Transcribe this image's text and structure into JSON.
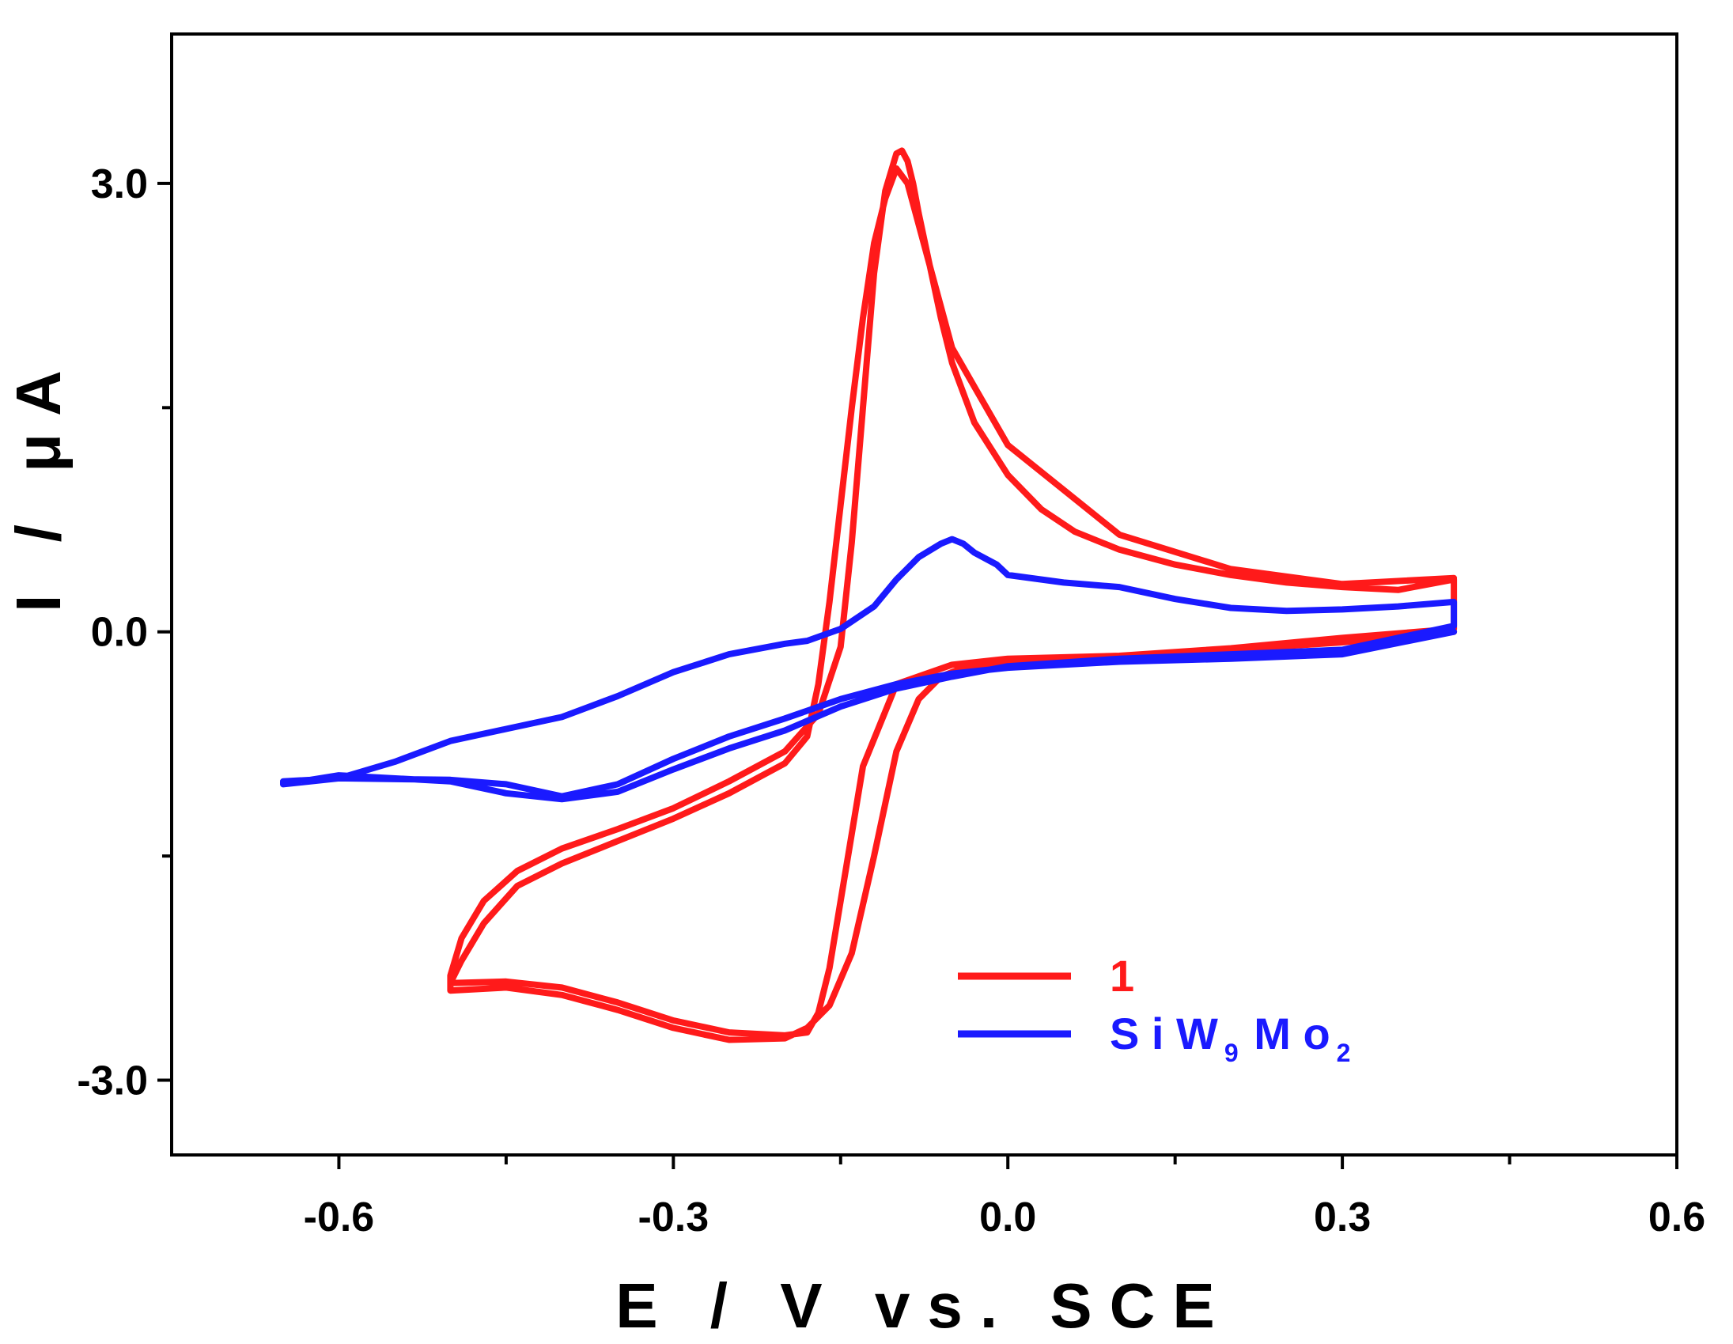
{
  "chart_data": {
    "type": "line",
    "title": "",
    "xlabel": "E / V vs. SCE",
    "ylabel": "I / μA",
    "xlim": [
      -0.75,
      0.6
    ],
    "ylim": [
      -3.5,
      4.0
    ],
    "x_ticks": [
      -0.6,
      -0.3,
      0.0,
      0.3,
      0.6
    ],
    "x_tick_labels": [
      "-0.6",
      "-0.3",
      "0.0",
      "0.3",
      "0.6"
    ],
    "x_minor_ticks": [
      -0.45,
      -0.15,
      0.15,
      0.45
    ],
    "y_ticks": [
      -3.0,
      0.0,
      3.0
    ],
    "y_tick_labels": [
      "-3.0",
      "0.0",
      "3.0"
    ],
    "y_minor_ticks": [
      -1.5,
      1.5
    ],
    "grid": false,
    "legend_position": "bottom-right",
    "series": [
      {
        "name": "1",
        "legend_label": "1",
        "color": "#ff1a1a",
        "x": [
          0.4,
          0.3,
          0.2,
          0.1,
          0.0,
          -0.04,
          -0.06,
          -0.08,
          -0.1,
          -0.12,
          -0.14,
          -0.16,
          -0.18,
          -0.2,
          -0.25,
          -0.3,
          -0.35,
          -0.4,
          -0.45,
          -0.5,
          -0.5,
          -0.49,
          -0.47,
          -0.44,
          -0.4,
          -0.35,
          -0.3,
          -0.25,
          -0.2,
          -0.17,
          -0.15,
          -0.14,
          -0.13,
          -0.12,
          -0.11,
          -0.1,
          -0.095,
          -0.09,
          -0.085,
          -0.08,
          -0.07,
          -0.06,
          -0.05,
          -0.03,
          0.0,
          0.03,
          0.06,
          0.1,
          0.15,
          0.2,
          0.25,
          0.3,
          0.35,
          0.4,
          0.4,
          0.3,
          0.2,
          0.1,
          0.0,
          -0.05,
          -0.1,
          -0.13,
          -0.15,
          -0.16,
          -0.17,
          -0.18,
          -0.2,
          -0.25,
          -0.3,
          -0.35,
          -0.4,
          -0.45,
          -0.5,
          -0.49,
          -0.47,
          -0.44,
          -0.4,
          -0.35,
          -0.3,
          -0.25,
          -0.2,
          -0.18,
          -0.17,
          -0.16,
          -0.15,
          -0.14,
          -0.13,
          -0.12,
          -0.11,
          -0.1,
          -0.09,
          -0.07,
          -0.05,
          0.0,
          0.1,
          0.2,
          0.3,
          0.4
        ],
        "y": [
          0.0,
          -0.07,
          -0.12,
          -0.17,
          -0.2,
          -0.24,
          -0.3,
          -0.45,
          -0.8,
          -1.5,
          -2.15,
          -2.5,
          -2.65,
          -2.72,
          -2.73,
          -2.65,
          -2.53,
          -2.43,
          -2.38,
          -2.4,
          -2.3,
          -2.05,
          -1.8,
          -1.6,
          -1.45,
          -1.32,
          -1.18,
          -1.0,
          -0.8,
          -0.55,
          -0.1,
          0.6,
          1.5,
          2.4,
          2.95,
          3.2,
          3.22,
          3.15,
          3.0,
          2.8,
          2.45,
          2.1,
          1.8,
          1.4,
          1.05,
          0.82,
          0.67,
          0.55,
          0.45,
          0.38,
          0.33,
          0.3,
          0.28,
          0.35,
          0.02,
          -0.04,
          -0.11,
          -0.16,
          -0.18,
          -0.22,
          -0.35,
          -0.9,
          -1.8,
          -2.25,
          -2.55,
          -2.68,
          -2.7,
          -2.68,
          -2.6,
          -2.48,
          -2.38,
          -2.34,
          -2.35,
          -2.2,
          -1.95,
          -1.7,
          -1.55,
          -1.4,
          -1.25,
          -1.08,
          -0.88,
          -0.7,
          -0.35,
          0.2,
          0.85,
          1.5,
          2.1,
          2.6,
          2.9,
          3.1,
          3.0,
          2.45,
          1.9,
          1.25,
          0.65,
          0.42,
          0.32,
          0.36
        ]
      },
      {
        "name": "SiW9Mo2",
        "legend_label_parts": [
          {
            "text": "S i W",
            "sub": false
          },
          {
            "text": "9",
            "sub": true
          },
          {
            "text": " M o",
            "sub": false
          },
          {
            "text": "2",
            "sub": true
          }
        ],
        "color": "#1a1aff",
        "x": [
          0.4,
          0.3,
          0.2,
          0.1,
          0.0,
          -0.05,
          -0.1,
          -0.15,
          -0.2,
          -0.25,
          -0.3,
          -0.35,
          -0.4,
          -0.45,
          -0.5,
          -0.6,
          -0.65,
          -0.65,
          -0.6,
          -0.55,
          -0.5,
          -0.45,
          -0.4,
          -0.35,
          -0.3,
          -0.25,
          -0.2,
          -0.18,
          -0.15,
          -0.12,
          -0.1,
          -0.08,
          -0.06,
          -0.05,
          -0.04,
          -0.03,
          -0.01,
          0.0,
          0.05,
          0.1,
          0.15,
          0.2,
          0.25,
          0.3,
          0.35,
          0.4,
          0.4,
          0.3,
          0.2,
          0.1,
          0.0,
          -0.05,
          -0.1,
          -0.15,
          -0.2,
          -0.25,
          -0.3,
          -0.35,
          -0.4,
          -0.45,
          -0.5,
          -0.6,
          -0.65
        ],
        "y": [
          0.0,
          -0.15,
          -0.18,
          -0.2,
          -0.24,
          -0.28,
          -0.35,
          -0.45,
          -0.58,
          -0.7,
          -0.85,
          -1.02,
          -1.1,
          -1.02,
          -0.99,
          -0.98,
          -1.02,
          -1.0,
          -0.98,
          -0.87,
          -0.73,
          -0.65,
          -0.57,
          -0.43,
          -0.27,
          -0.15,
          -0.08,
          -0.06,
          0.02,
          0.17,
          0.35,
          0.5,
          0.59,
          0.62,
          0.59,
          0.53,
          0.45,
          0.38,
          0.33,
          0.3,
          0.22,
          0.16,
          0.14,
          0.15,
          0.17,
          0.2,
          0.04,
          -0.12,
          -0.15,
          -0.18,
          -0.23,
          -0.3,
          -0.38,
          -0.5,
          -0.66,
          -0.78,
          -0.92,
          -1.07,
          -1.12,
          -1.08,
          -1.0,
          -0.96,
          -1.02
        ]
      }
    ]
  }
}
